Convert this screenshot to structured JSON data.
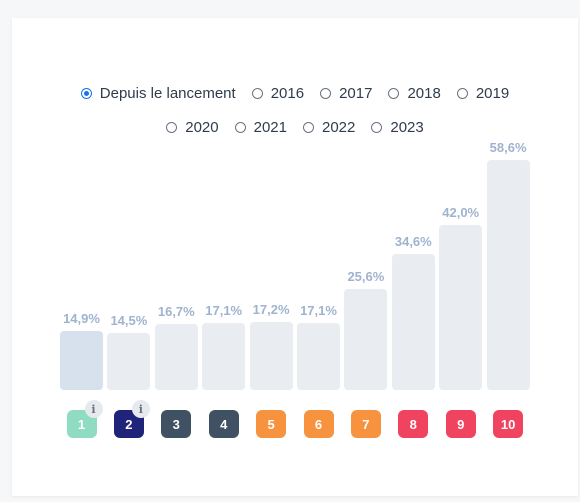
{
  "periods": {
    "row1": [
      {
        "label": "Depuis le lancement",
        "selected": true
      },
      {
        "label": "2016",
        "selected": false
      },
      {
        "label": "2017",
        "selected": false
      },
      {
        "label": "2018",
        "selected": false
      },
      {
        "label": "2019",
        "selected": false
      }
    ],
    "row2": [
      {
        "label": "2020",
        "selected": false
      },
      {
        "label": "2021",
        "selected": false
      },
      {
        "label": "2022",
        "selected": false
      },
      {
        "label": "2023",
        "selected": false
      }
    ]
  },
  "chart_data": {
    "type": "bar",
    "categories": [
      "1",
      "2",
      "3",
      "4",
      "5",
      "6",
      "7",
      "8",
      "9",
      "10"
    ],
    "values": [
      14.9,
      14.5,
      16.7,
      17.1,
      17.2,
      17.1,
      25.6,
      34.6,
      42.0,
      58.6
    ],
    "value_labels": [
      "14,9%",
      "14,5%",
      "16,7%",
      "17,1%",
      "17,2%",
      "17,1%",
      "25,6%",
      "34,6%",
      "42,0%",
      "58,6%"
    ],
    "highlight_index": 0,
    "badge_colors": [
      "#8fdcc2",
      "#1f237a",
      "#3f5163",
      "#3f5163",
      "#f7923e",
      "#f7923e",
      "#f7923e",
      "#f0435f",
      "#f0435f",
      "#f0435f"
    ],
    "info_icon_categories": [
      "1",
      "2"
    ],
    "info_icon_glyph": "i",
    "bar_color": "#e9edf1",
    "highlight_color": "#d7e1ee",
    "label_color": "#9fb3cf"
  }
}
